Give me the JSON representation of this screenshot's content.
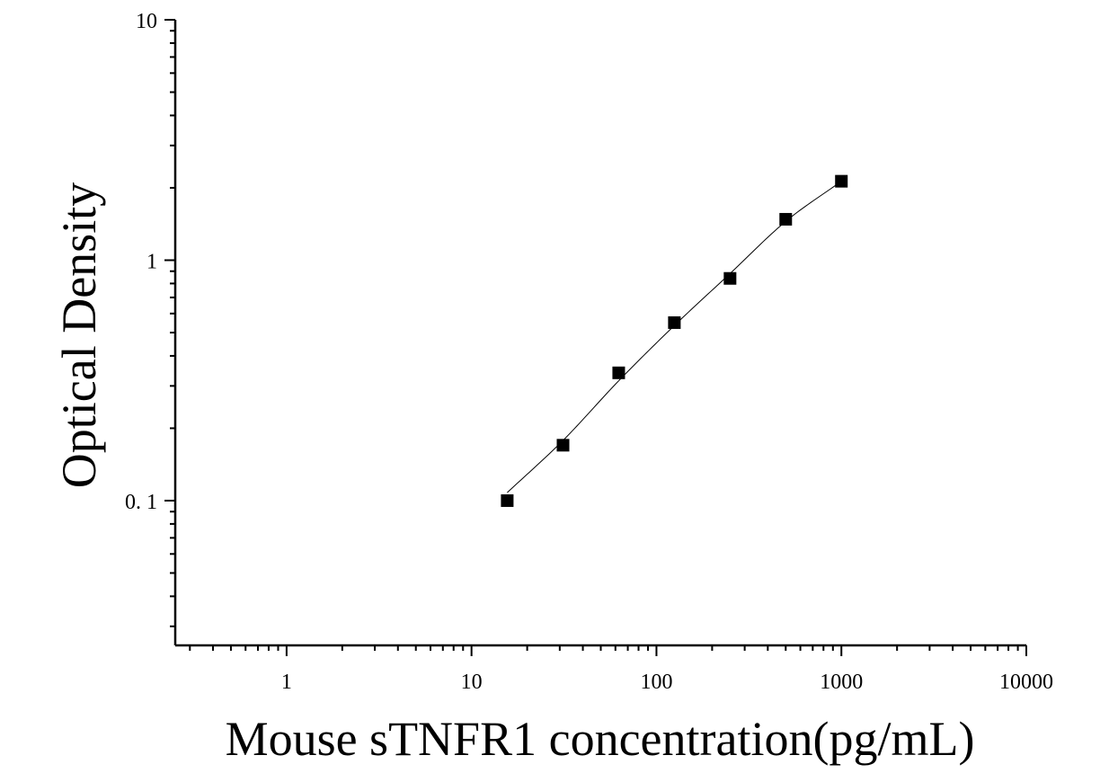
{
  "chart_data": {
    "type": "scatter",
    "title": "",
    "xlabel": "Mouse sTNFR1 concentration(pg/mL)",
    "ylabel": "Optical Density",
    "xscale": "log",
    "yscale": "log",
    "xlim": [
      0.25,
      10000
    ],
    "ylim": [
      0.025,
      10
    ],
    "x_ticks": [
      {
        "value": 1,
        "label": "1"
      },
      {
        "value": 10,
        "label": "10"
      },
      {
        "value": 100,
        "label": "100"
      },
      {
        "value": 1000,
        "label": "1000"
      },
      {
        "value": 10000,
        "label": "10000"
      }
    ],
    "y_ticks": [
      {
        "value": 0.1,
        "label": "0. 1"
      },
      {
        "value": 1,
        "label": "1"
      },
      {
        "value": 10,
        "label": "10"
      }
    ],
    "series": [
      {
        "marker": "square",
        "color": "#000000",
        "x": [
          15.6,
          31.25,
          62.5,
          125,
          250,
          500,
          1000
        ],
        "y": [
          0.1,
          0.17,
          0.34,
          0.55,
          0.84,
          1.48,
          2.13
        ]
      }
    ],
    "fit_curve": {
      "color": "#000000",
      "x": [
        15.6,
        31.25,
        62.5,
        125,
        250,
        500,
        1000
      ],
      "y": [
        0.108,
        0.178,
        0.315,
        0.535,
        0.88,
        1.45,
        2.13
      ]
    },
    "grid": false,
    "legend": "none"
  }
}
